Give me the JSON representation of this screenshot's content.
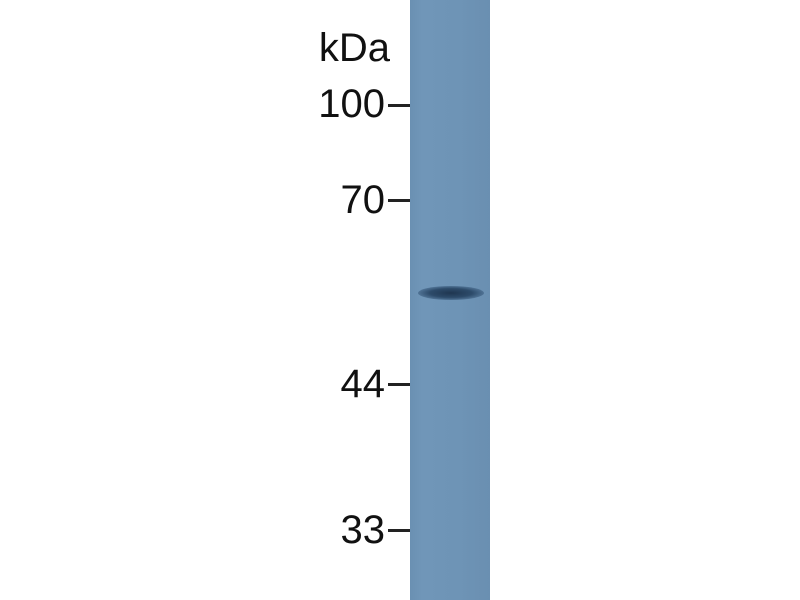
{
  "unit_label": "kDa",
  "markers": [
    {
      "label": "100",
      "kda": 100
    },
    {
      "label": "70",
      "kda": 70
    },
    {
      "label": "44",
      "kda": 44
    },
    {
      "label": "33",
      "kda": 33
    }
  ],
  "lanes": [
    {
      "bands": [
        {
          "approx_kda": 57
        }
      ]
    }
  ],
  "colors": {
    "membrane": "#6c93b5",
    "band": "#2a4562",
    "text": "#111111"
  }
}
